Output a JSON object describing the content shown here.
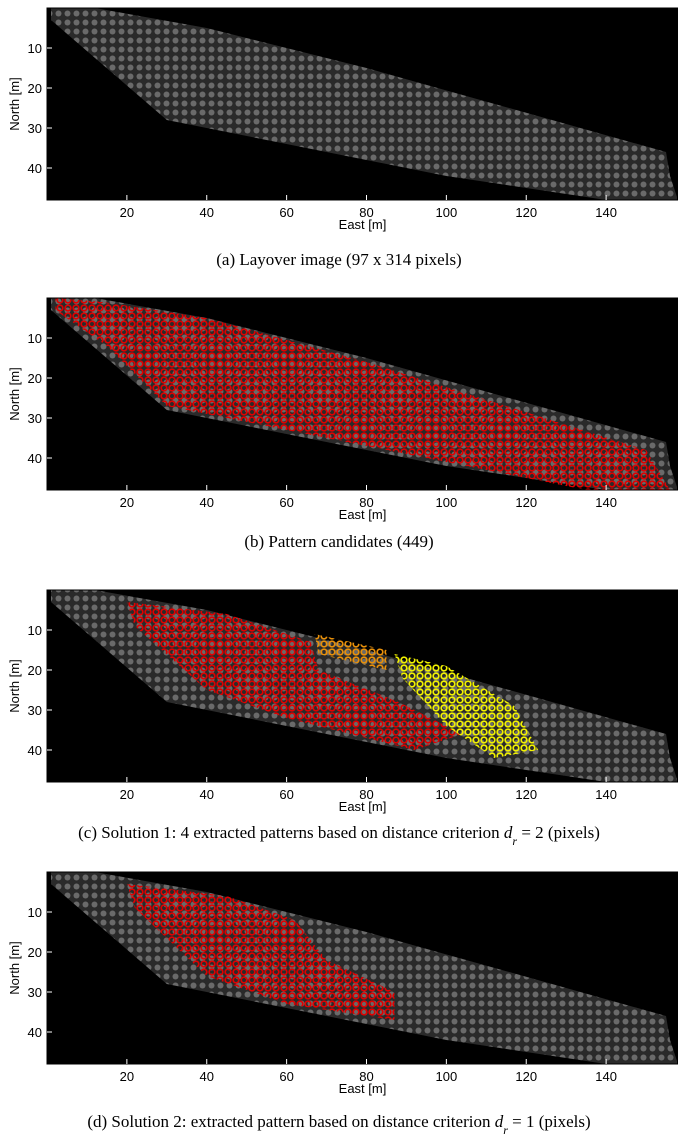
{
  "panels": [
    {
      "caption": [
        "(a) Layover image (97 x 314 pixels)"
      ],
      "xlabel": "East [m]",
      "ylabel": "North [m]",
      "xlim": [
        0,
        158
      ],
      "ylim": [
        0,
        48
      ],
      "xticks": [
        20,
        40,
        60,
        80,
        100,
        120,
        140
      ],
      "yticks": [
        10,
        20,
        30,
        40
      ]
    },
    {
      "caption": [
        "(b) Pattern candidates (449)"
      ],
      "xlabel": "East [m]",
      "ylabel": "North [m]",
      "xlim": [
        0,
        158
      ],
      "ylim": [
        0,
        48
      ],
      "xticks": [
        20,
        40,
        60,
        80,
        100,
        120,
        140
      ],
      "yticks": [
        10,
        20,
        30,
        40
      ]
    },
    {
      "caption": [
        "(c) Solution 1: 4 extracted patterns based on distance criterion ",
        "d",
        "r",
        " = 2 (pixels)"
      ],
      "xlabel": "East [m]",
      "ylabel": "North [m]",
      "xlim": [
        0,
        158
      ],
      "ylim": [
        0,
        48
      ],
      "xticks": [
        20,
        40,
        60,
        80,
        100,
        120,
        140
      ],
      "yticks": [
        10,
        20,
        30,
        40
      ]
    },
    {
      "caption": [
        "(d) Solution 2: extracted pattern based on distance criterion ",
        "d",
        "r",
        " = 1 (pixels)"
      ],
      "xlabel": "East [m]",
      "ylabel": "North [m]",
      "xlim": [
        0,
        158
      ],
      "ylim": [
        0,
        48
      ],
      "xticks": [
        20,
        40,
        60,
        80,
        100,
        120,
        140
      ],
      "yticks": [
        10,
        20,
        30,
        40
      ]
    }
  ]
}
